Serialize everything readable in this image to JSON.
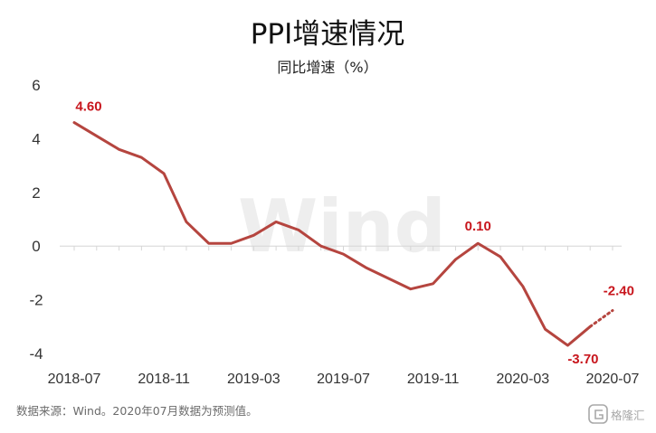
{
  "chart_data": {
    "type": "line",
    "title": "PPI增速情况",
    "subtitle": "同比增速（%）",
    "x": [
      "2018-07",
      "2018-08",
      "2018-09",
      "2018-10",
      "2018-11",
      "2018-12",
      "2019-01",
      "2019-02",
      "2019-03",
      "2019-04",
      "2019-05",
      "2019-06",
      "2019-07",
      "2019-08",
      "2019-09",
      "2019-10",
      "2019-11",
      "2019-12",
      "2020-01",
      "2020-02",
      "2020-03",
      "2020-04",
      "2020-05",
      "2020-06",
      "2020-07"
    ],
    "x_tick_labels": [
      "2018-07",
      "2018-11",
      "2019-03",
      "2019-07",
      "2019-11",
      "2020-03",
      "2020-07"
    ],
    "x_tick_index": [
      0,
      4,
      8,
      12,
      16,
      20,
      24
    ],
    "ylim": [
      -4,
      6
    ],
    "y_ticks": [
      "6",
      "4",
      "2",
      "0",
      "-2",
      "-4"
    ],
    "y_tick_values": [
      6,
      4,
      2,
      0,
      -2,
      -4
    ],
    "series": [
      {
        "values": [
          4.6,
          4.1,
          3.6,
          3.3,
          2.7,
          0.9,
          0.1,
          0.1,
          0.4,
          0.9,
          0.6,
          0.0,
          -0.3,
          -0.8,
          -1.2,
          -1.6,
          -1.4,
          -0.5,
          0.1,
          -0.4,
          -1.5,
          -3.1,
          -3.7,
          -3.0,
          -2.4
        ],
        "forecast_from_index": 23,
        "color": "#b5453f"
      }
    ],
    "data_labels": [
      {
        "index": 0,
        "text": "4.60"
      },
      {
        "index": 18,
        "text": "0.10"
      },
      {
        "index": 22,
        "text": "-3.70"
      },
      {
        "index": 24,
        "text": "-2.40"
      }
    ],
    "label_color": "#c8161d",
    "grid": false,
    "zero_line": true
  },
  "watermark": "Wind",
  "source_note": "数据来源：Wind。2020年07月数据为预测值。",
  "logo_text": "格隆汇"
}
